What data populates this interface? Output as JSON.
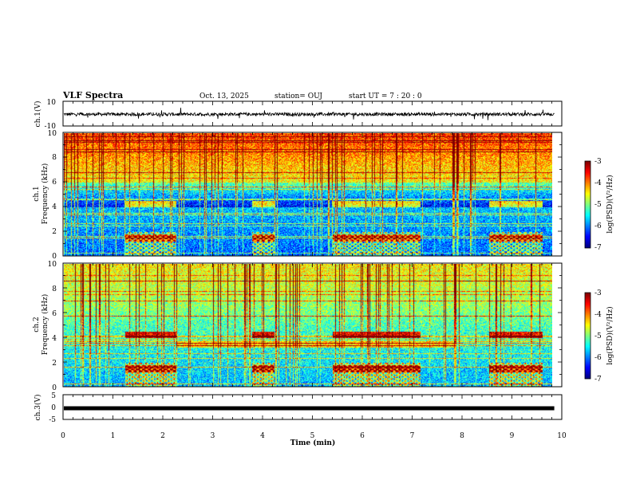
{
  "header": {
    "title": "VLF Spectra",
    "date": "Oct. 13, 2025",
    "station": "station= OUJ",
    "start_ut": "start  UT =   7 : 20 : 0"
  },
  "colors": {
    "trace": "#000000",
    "axes": "#000000",
    "colormap": [
      "#000080",
      "#0000ff",
      "#00a0ff",
      "#00ffff",
      "#00ff80",
      "#80ff00",
      "#ffff00",
      "#ff8000",
      "#ff0000",
      "#ffffff"
    ]
  },
  "chart_data": [
    {
      "type": "line",
      "ylabel": "ch.1(V)",
      "ylim": [
        -10,
        10
      ],
      "yticks": [
        "10",
        "-10"
      ],
      "xlim": [
        0,
        10
      ],
      "series_level_v": -0.5
    },
    {
      "type": "heatmap",
      "ylabel_line1": "ch.1",
      "ylabel_line2": "Frequency (kHz)",
      "ylim_khz": [
        0,
        10
      ],
      "yticks": [
        "0",
        "2",
        "4",
        "6",
        "8",
        "10"
      ],
      "xlim": [
        0,
        10
      ],
      "colorbar": {
        "label": "log(PSD)(V²/Hz)",
        "range": [
          -7,
          -3
        ],
        "ticks": [
          "-3",
          "-4",
          "-5",
          "-6",
          "-7"
        ]
      },
      "active_intervals_min": [
        [
          1.25,
          2.3
        ],
        [
          3.85,
          4.3
        ],
        [
          5.5,
          7.3
        ],
        [
          8.7,
          9.8
        ]
      ],
      "data_end_min": 9.85
    },
    {
      "type": "heatmap",
      "ylabel_line1": "ch.2",
      "ylabel_line2": "Frequency (kHz)",
      "ylim_khz": [
        0,
        10
      ],
      "yticks": [
        "0",
        "2",
        "4",
        "6",
        "8",
        "10"
      ],
      "xlim": [
        0,
        10
      ],
      "colorbar": {
        "label": "log(PSD)(V²/Hz)",
        "range": [
          -7,
          -3
        ],
        "ticks": [
          "-3",
          "-4",
          "-5",
          "-6",
          "-7"
        ]
      },
      "active_intervals_min": [
        [
          1.25,
          2.3
        ],
        [
          3.85,
          4.3
        ],
        [
          5.5,
          7.3
        ],
        [
          8.7,
          9.8
        ]
      ],
      "data_end_min": 9.85
    },
    {
      "type": "line",
      "ylabel": "ch.3(V)",
      "ylim": [
        -5,
        5
      ],
      "yticks": [
        "5",
        "0",
        "-5"
      ],
      "xlim": [
        0,
        10
      ],
      "series_level_v": -0.5
    }
  ],
  "xaxis": {
    "label": "Time (min)",
    "ticks": [
      "0",
      "1",
      "2",
      "3",
      "4",
      "5",
      "6",
      "7",
      "8",
      "9",
      "10"
    ]
  }
}
